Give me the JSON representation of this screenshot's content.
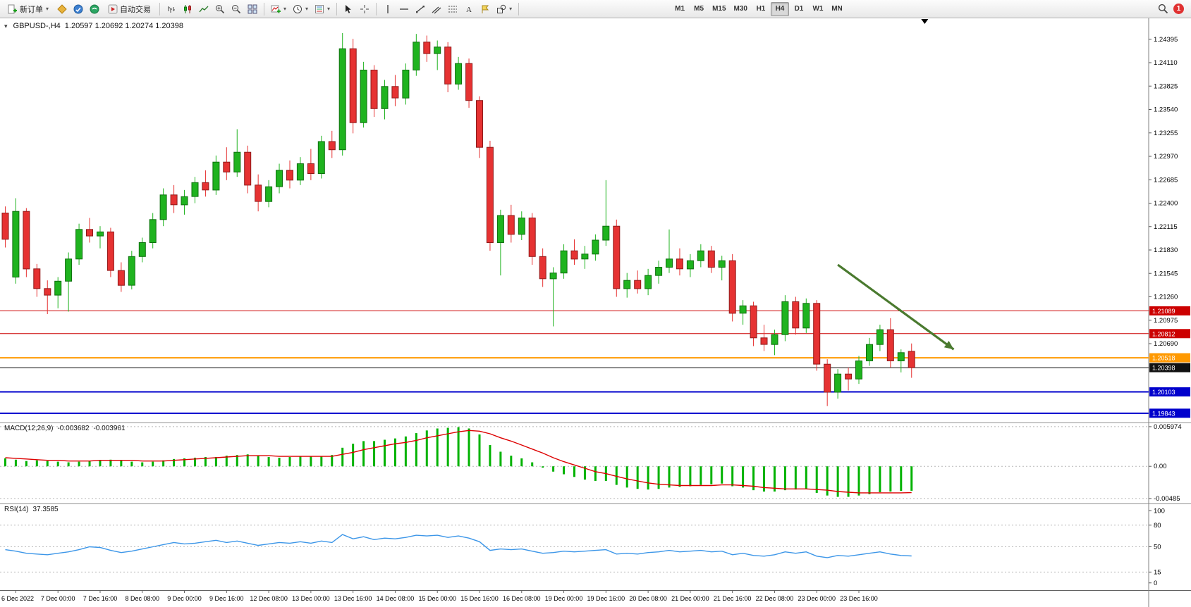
{
  "toolbar": {
    "new_order_label": "新订单",
    "autotrading_label": "自动交易",
    "timeframes": [
      "M1",
      "M5",
      "M15",
      "M30",
      "H1",
      "H4",
      "D1",
      "W1",
      "MN"
    ],
    "active_timeframe": "H4",
    "notification_count": "1",
    "icons": [
      "new-order",
      "profiles",
      "market-depth",
      "notifications",
      "autotrading",
      "bar-chart",
      "candlestick-chart",
      "line-chart",
      "zoom-in",
      "zoom-out",
      "tile-windows",
      "add-indicator",
      "periods",
      "templates",
      "cursor",
      "crosshair",
      "vertical-line",
      "horizontal-line",
      "trendline",
      "equidistant-channel",
      "fibonacci",
      "text",
      "label",
      "shapes",
      "search"
    ]
  },
  "chart_header": {
    "symbol": "GBPUSD-,H4",
    "ohlc": "1.20597 1.20692 1.20274 1.20398"
  },
  "time_axis": [
    "6 Dec 2022",
    "7 Dec 00:00",
    "7 Dec 16:00",
    "8 Dec 08:00",
    "9 Dec 00:00",
    "9 Dec 16:00",
    "12 Dec 08:00",
    "13 Dec 00:00",
    "13 Dec 16:00",
    "14 Dec 08:00",
    "15 Dec 00:00",
    "15 Dec 16:00",
    "16 Dec 08:00",
    "19 Dec 00:00",
    "19 Dec 16:00",
    "20 Dec 08:00",
    "21 Dec 00:00",
    "21 Dec 16:00",
    "22 Dec 08:00",
    "23 Dec 00:00",
    "23 Dec 16:00"
  ],
  "chart_data": [
    {
      "type": "candlestick",
      "symbol": "GBPUSD-",
      "timeframe": "H4",
      "ylim": [
        1.1973,
        1.2465
      ],
      "total_slots": 109,
      "y_ticks": [
        1.24395,
        1.2411,
        1.23825,
        1.2354,
        1.23255,
        1.2297,
        1.22685,
        1.224,
        1.22115,
        1.2183,
        1.21545,
        1.2126,
        1.20975,
        1.2069
      ],
      "levels": [
        {
          "price": 1.21089,
          "color": "#cc0000",
          "width": 1
        },
        {
          "price": 1.20812,
          "color": "#cc0000",
          "width": 1
        },
        {
          "price": 1.20518,
          "color": "#ff9900",
          "width": 2
        },
        {
          "price": 1.20398,
          "color": "#111111",
          "width": 1
        },
        {
          "price": 1.20103,
          "color": "#0000cc",
          "width": 2
        },
        {
          "price": 1.19843,
          "color": "#0000cc",
          "width": 2
        }
      ],
      "colors": {
        "up": "#1fb31f",
        "up_border": "#0e6f0e",
        "down": "#e63232",
        "down_border": "#8f1a1a"
      },
      "arrow": {
        "from_slot": 79,
        "from_price": 1.2165,
        "to_slot": 90,
        "to_price": 1.2062,
        "color": "#4a7a2f"
      },
      "shift_marker_frac": 0.805,
      "candles": [
        [
          1.2228,
          1.2236,
          1.2186,
          1.2196
        ],
        [
          1.215,
          1.2246,
          1.2142,
          1.223
        ],
        [
          1.223,
          1.2234,
          1.215,
          1.216
        ],
        [
          1.216,
          1.2166,
          1.2126,
          1.2136
        ],
        [
          1.2136,
          1.2146,
          1.2105,
          1.2128
        ],
        [
          1.2128,
          1.215,
          1.2112,
          1.2145
        ],
        [
          1.2145,
          1.218,
          1.2108,
          1.2172
        ],
        [
          1.2172,
          1.2215,
          1.2165,
          1.2208
        ],
        [
          1.2208,
          1.2222,
          1.2192,
          1.22
        ],
        [
          1.22,
          1.2212,
          1.2185,
          1.2205
        ],
        [
          1.2205,
          1.221,
          1.215,
          1.2158
        ],
        [
          1.2158,
          1.2168,
          1.2132,
          1.214
        ],
        [
          1.214,
          1.2182,
          1.2135,
          1.2175
        ],
        [
          1.2175,
          1.2198,
          1.2168,
          1.2192
        ],
        [
          1.2192,
          1.2228,
          1.2185,
          1.222
        ],
        [
          1.222,
          1.2258,
          1.2212,
          1.225
        ],
        [
          1.225,
          1.2262,
          1.2228,
          1.2238
        ],
        [
          1.2238,
          1.2256,
          1.2226,
          1.2248
        ],
        [
          1.2248,
          1.2272,
          1.224,
          1.2265
        ],
        [
          1.2265,
          1.228,
          1.2248,
          1.2256
        ],
        [
          1.2256,
          1.2298,
          1.225,
          1.229
        ],
        [
          1.229,
          1.2308,
          1.2268,
          1.2278
        ],
        [
          1.2278,
          1.233,
          1.2272,
          1.2302
        ],
        [
          1.2302,
          1.231,
          1.2252,
          1.2262
        ],
        [
          1.2262,
          1.2275,
          1.223,
          1.2242
        ],
        [
          1.2242,
          1.2268,
          1.2235,
          1.226
        ],
        [
          1.226,
          1.2288,
          1.2252,
          1.228
        ],
        [
          1.228,
          1.2292,
          1.2258,
          1.2268
        ],
        [
          1.2268,
          1.2296,
          1.2262,
          1.2288
        ],
        [
          1.2288,
          1.2306,
          1.2268,
          1.2276
        ],
        [
          1.2276,
          1.2322,
          1.227,
          1.2315
        ],
        [
          1.2315,
          1.2328,
          1.2295,
          1.2305
        ],
        [
          1.2305,
          1.2447,
          1.2298,
          1.2428
        ],
        [
          1.2428,
          1.244,
          1.2325,
          1.2338
        ],
        [
          1.2338,
          1.2412,
          1.2332,
          1.2402
        ],
        [
          1.2402,
          1.2408,
          1.2345,
          1.2355
        ],
        [
          1.2355,
          1.239,
          1.2342,
          1.2382
        ],
        [
          1.2382,
          1.2396,
          1.2358,
          1.2368
        ],
        [
          1.2368,
          1.241,
          1.236,
          1.2402
        ],
        [
          1.2402,
          1.2446,
          1.2395,
          1.2436
        ],
        [
          1.2436,
          1.2444,
          1.2412,
          1.2422
        ],
        [
          1.2422,
          1.2438,
          1.2402,
          1.243
        ],
        [
          1.243,
          1.2436,
          1.2375,
          1.2385
        ],
        [
          1.2385,
          1.2418,
          1.2378,
          1.241
        ],
        [
          1.241,
          1.2416,
          1.2356,
          1.2365
        ],
        [
          1.2365,
          1.237,
          1.2295,
          1.2308
        ],
        [
          1.2308,
          1.2316,
          1.2182,
          1.2192
        ],
        [
          1.2192,
          1.2232,
          1.2152,
          1.2225
        ],
        [
          1.2225,
          1.2238,
          1.2192,
          1.2202
        ],
        [
          1.2202,
          1.223,
          1.2195,
          1.2222
        ],
        [
          1.2222,
          1.2228,
          1.2165,
          1.2175
        ],
        [
          1.2175,
          1.2185,
          1.2138,
          1.2148
        ],
        [
          1.2148,
          1.2162,
          1.209,
          1.2155
        ],
        [
          1.2155,
          1.219,
          1.2148,
          1.2182
        ],
        [
          1.2182,
          1.2196,
          1.2165,
          1.2172
        ],
        [
          1.2172,
          1.2188,
          1.216,
          1.2178
        ],
        [
          1.2178,
          1.2202,
          1.217,
          1.2195
        ],
        [
          1.2195,
          1.2268,
          1.2188,
          1.2212
        ],
        [
          1.2212,
          1.222,
          1.2126,
          1.2136
        ],
        [
          1.2136,
          1.2155,
          1.2125,
          1.2146
        ],
        [
          1.2146,
          1.2158,
          1.213,
          1.2136
        ],
        [
          1.2136,
          1.216,
          1.2128,
          1.2152
        ],
        [
          1.2152,
          1.217,
          1.2142,
          1.2162
        ],
        [
          1.2162,
          1.2208,
          1.2155,
          1.2172
        ],
        [
          1.2172,
          1.2185,
          1.2152,
          1.216
        ],
        [
          1.216,
          1.2178,
          1.215,
          1.217
        ],
        [
          1.217,
          1.219,
          1.2162,
          1.2182
        ],
        [
          1.2182,
          1.2188,
          1.2155,
          1.2162
        ],
        [
          1.2162,
          1.2176,
          1.2146,
          1.217
        ],
        [
          1.217,
          1.2178,
          1.2096,
          1.2106
        ],
        [
          1.2106,
          1.2122,
          1.2092,
          1.2115
        ],
        [
          1.2115,
          1.212,
          1.2066,
          1.2076
        ],
        [
          1.2076,
          1.2092,
          1.206,
          1.2068
        ],
        [
          1.2068,
          1.2086,
          1.2055,
          1.208
        ],
        [
          1.208,
          1.2128,
          1.2072,
          1.212
        ],
        [
          1.212,
          1.2126,
          1.208,
          1.2088
        ],
        [
          1.2088,
          1.2124,
          1.2082,
          1.2118
        ],
        [
          1.2118,
          1.2122,
          1.2036,
          1.2044
        ],
        [
          1.2044,
          1.205,
          1.1993,
          1.201
        ],
        [
          1.201,
          1.2038,
          1.2002,
          1.2032
        ],
        [
          1.2032,
          1.204,
          1.2012,
          1.2026
        ],
        [
          1.2026,
          1.2054,
          1.202,
          1.2048
        ],
        [
          1.2048,
          1.2076,
          1.2042,
          1.2068
        ],
        [
          1.2068,
          1.2092,
          1.206,
          1.2086
        ],
        [
          1.2086,
          1.21,
          1.204,
          1.2048
        ],
        [
          1.2048,
          1.2062,
          1.2034,
          1.2058
        ],
        [
          1.20597,
          1.20692,
          1.20274,
          1.20398
        ]
      ]
    },
    {
      "type": "macd-histogram",
      "label": "MACD(12,26,9)",
      "main_value": "-0.003682",
      "signal_value": "-0.003961",
      "ylim": [
        -0.0056,
        0.0066
      ],
      "y_ticks": [
        {
          "v": 0.005974,
          "label": "0.005974"
        },
        {
          "v": 0,
          "label": "0.00"
        },
        {
          "v": -0.00485,
          "label": "-0.00485"
        }
      ],
      "colors": {
        "histogram": "#00b200",
        "signal": "#dd0000"
      },
      "histogram": [
        0.0012,
        0.001,
        0.0008,
        0.0009,
        0.0008,
        0.0007,
        0.0006,
        0.0007,
        0.0008,
        0.0009,
        0.001,
        0.0009,
        0.0007,
        0.0006,
        0.0007,
        0.0009,
        0.0011,
        0.0012,
        0.0013,
        0.0014,
        0.0014,
        0.0016,
        0.0017,
        0.0018,
        0.0016,
        0.0014,
        0.0013,
        0.0014,
        0.0015,
        0.0015,
        0.0015,
        0.0017,
        0.0028,
        0.0034,
        0.0038,
        0.0038,
        0.004,
        0.0042,
        0.0045,
        0.005,
        0.0054,
        0.0057,
        0.0058,
        0.0059,
        0.0057,
        0.0048,
        0.0032,
        0.0022,
        0.0016,
        0.0012,
        0.0006,
        -0.0002,
        -0.0008,
        -0.0012,
        -0.0016,
        -0.002,
        -0.0022,
        -0.0022,
        -0.0028,
        -0.0032,
        -0.0034,
        -0.0035,
        -0.0034,
        -0.0032,
        -0.0031,
        -0.003,
        -0.0028,
        -0.0027,
        -0.0026,
        -0.003,
        -0.0032,
        -0.0036,
        -0.0038,
        -0.0038,
        -0.0036,
        -0.0035,
        -0.0034,
        -0.004,
        -0.0044,
        -0.0046,
        -0.0046,
        -0.0044,
        -0.0042,
        -0.0039,
        -0.0038,
        -0.0037,
        -0.003682
      ],
      "signal": [
        0.0013,
        0.0012,
        0.0011,
        0.001,
        0.0009,
        0.0009,
        0.0008,
        0.0008,
        0.0008,
        0.0009,
        0.0009,
        0.0009,
        0.0009,
        0.0008,
        0.0008,
        0.0008,
        0.0009,
        0.001,
        0.0011,
        0.0012,
        0.0013,
        0.0014,
        0.0015,
        0.0016,
        0.0016,
        0.0016,
        0.0015,
        0.0015,
        0.0015,
        0.0015,
        0.0015,
        0.0015,
        0.0018,
        0.0021,
        0.0025,
        0.0028,
        0.0031,
        0.0034,
        0.0036,
        0.0039,
        0.0043,
        0.0046,
        0.0049,
        0.0052,
        0.0054,
        0.0053,
        0.0049,
        0.0043,
        0.0038,
        0.0032,
        0.0026,
        0.002,
        0.0013,
        0.0007,
        0.0002,
        -0.0003,
        -0.0008,
        -0.0011,
        -0.0015,
        -0.0019,
        -0.0022,
        -0.0025,
        -0.0027,
        -0.0028,
        -0.0029,
        -0.0029,
        -0.0029,
        -0.0029,
        -0.0028,
        -0.0028,
        -0.0029,
        -0.003,
        -0.0032,
        -0.0033,
        -0.0034,
        -0.0034,
        -0.0034,
        -0.0035,
        -0.0036,
        -0.0038,
        -0.0039,
        -0.004,
        -0.004,
        -0.004,
        -0.004,
        -0.004,
        -0.003961
      ]
    },
    {
      "type": "line",
      "label": "RSI(14)",
      "value": "37.3585",
      "ylim": [
        -10,
        110
      ],
      "y_ticks": [
        {
          "v": 100,
          "label": "100"
        },
        {
          "v": 80,
          "label": "80"
        },
        {
          "v": 50,
          "label": "50"
        },
        {
          "v": 15,
          "label": "15"
        },
        {
          "v": 0,
          "label": "0"
        }
      ],
      "level_lines": [
        80,
        50,
        15
      ],
      "color": "#3c96e8",
      "values": [
        46,
        44,
        41,
        40,
        39,
        41,
        43,
        46,
        50,
        49,
        45,
        42,
        44,
        47,
        50,
        53,
        56,
        54,
        55,
        57,
        59,
        56,
        58,
        55,
        52,
        54,
        56,
        55,
        57,
        55,
        58,
        56,
        67,
        61,
        64,
        60,
        62,
        61,
        63,
        66,
        65,
        66,
        63,
        65,
        62,
        57,
        45,
        47,
        46,
        47,
        44,
        41,
        42,
        44,
        43,
        44,
        45,
        46,
        40,
        41,
        40,
        42,
        43,
        45,
        43,
        44,
        45,
        43,
        44,
        39,
        41,
        38,
        37,
        39,
        43,
        41,
        43,
        37,
        35,
        38,
        37,
        39,
        41,
        43,
        40,
        38,
        37.36
      ]
    }
  ]
}
